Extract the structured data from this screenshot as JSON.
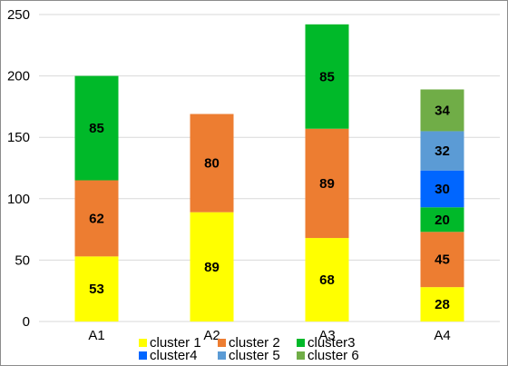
{
  "chart_data": {
    "type": "bar",
    "stacked": true,
    "categories": [
      "A1",
      "A2",
      "A3",
      "A4"
    ],
    "ylim": [
      0,
      250
    ],
    "yticks": [
      0,
      50,
      100,
      150,
      200,
      250
    ],
    "grid": true,
    "legend_position": "bottom",
    "series": [
      {
        "name": "cluster 1",
        "color": "#ffff00",
        "values": [
          53,
          89,
          68,
          28
        ]
      },
      {
        "name": "cluster 2",
        "color": "#ed7d31",
        "values": [
          62,
          80,
          89,
          45
        ]
      },
      {
        "name": "cluster3",
        "color": "#00b929",
        "values": [
          85,
          null,
          85,
          20
        ]
      },
      {
        "name": "cluster4",
        "color": "#0066ff",
        "values": [
          null,
          null,
          null,
          30
        ]
      },
      {
        "name": "cluster 5",
        "color": "#5b9bd5",
        "values": [
          null,
          null,
          null,
          32
        ]
      },
      {
        "name": "cluster 6",
        "color": "#70ad47",
        "values": [
          null,
          null,
          null,
          34
        ]
      }
    ]
  }
}
